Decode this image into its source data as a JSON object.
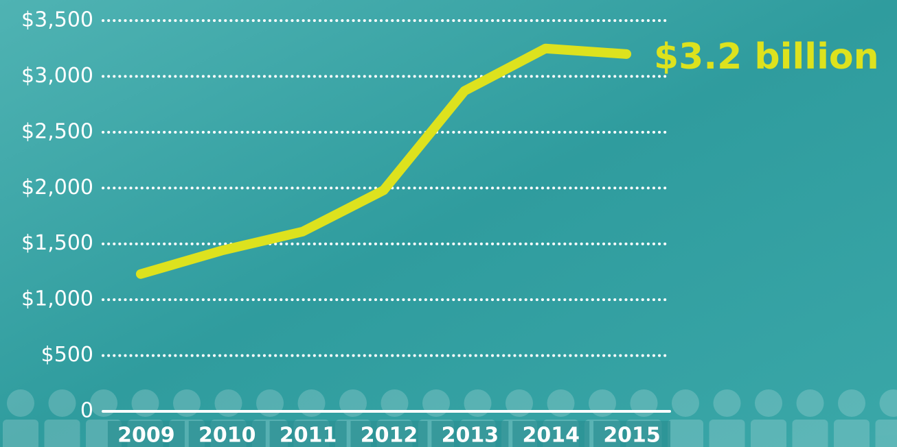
{
  "chart_data": {
    "type": "line",
    "categories": [
      "2009",
      "2010",
      "2011",
      "2012",
      "2013",
      "2014",
      "2015"
    ],
    "series": [
      {
        "color": "#dde21e",
        "values": [
          1230,
          1440,
          1610,
          1980,
          2870,
          3250,
          3200
        ]
      }
    ],
    "ylim": [
      0,
      3500
    ],
    "yticks": [
      0,
      {
        "value": 500,
        "label": "$500"
      },
      {
        "value": 1000,
        "label": "$1,000"
      },
      {
        "value": 1500,
        "label": "$1,500"
      },
      {
        "value": 2000,
        "label": "$2,000"
      },
      {
        "value": 2500,
        "label": "$2,500"
      },
      {
        "value": 3000,
        "label": "$3,000"
      },
      {
        "value": 3500,
        "label": "$3,500"
      }
    ],
    "grid": true,
    "annotation": "$3.2 billion"
  }
}
